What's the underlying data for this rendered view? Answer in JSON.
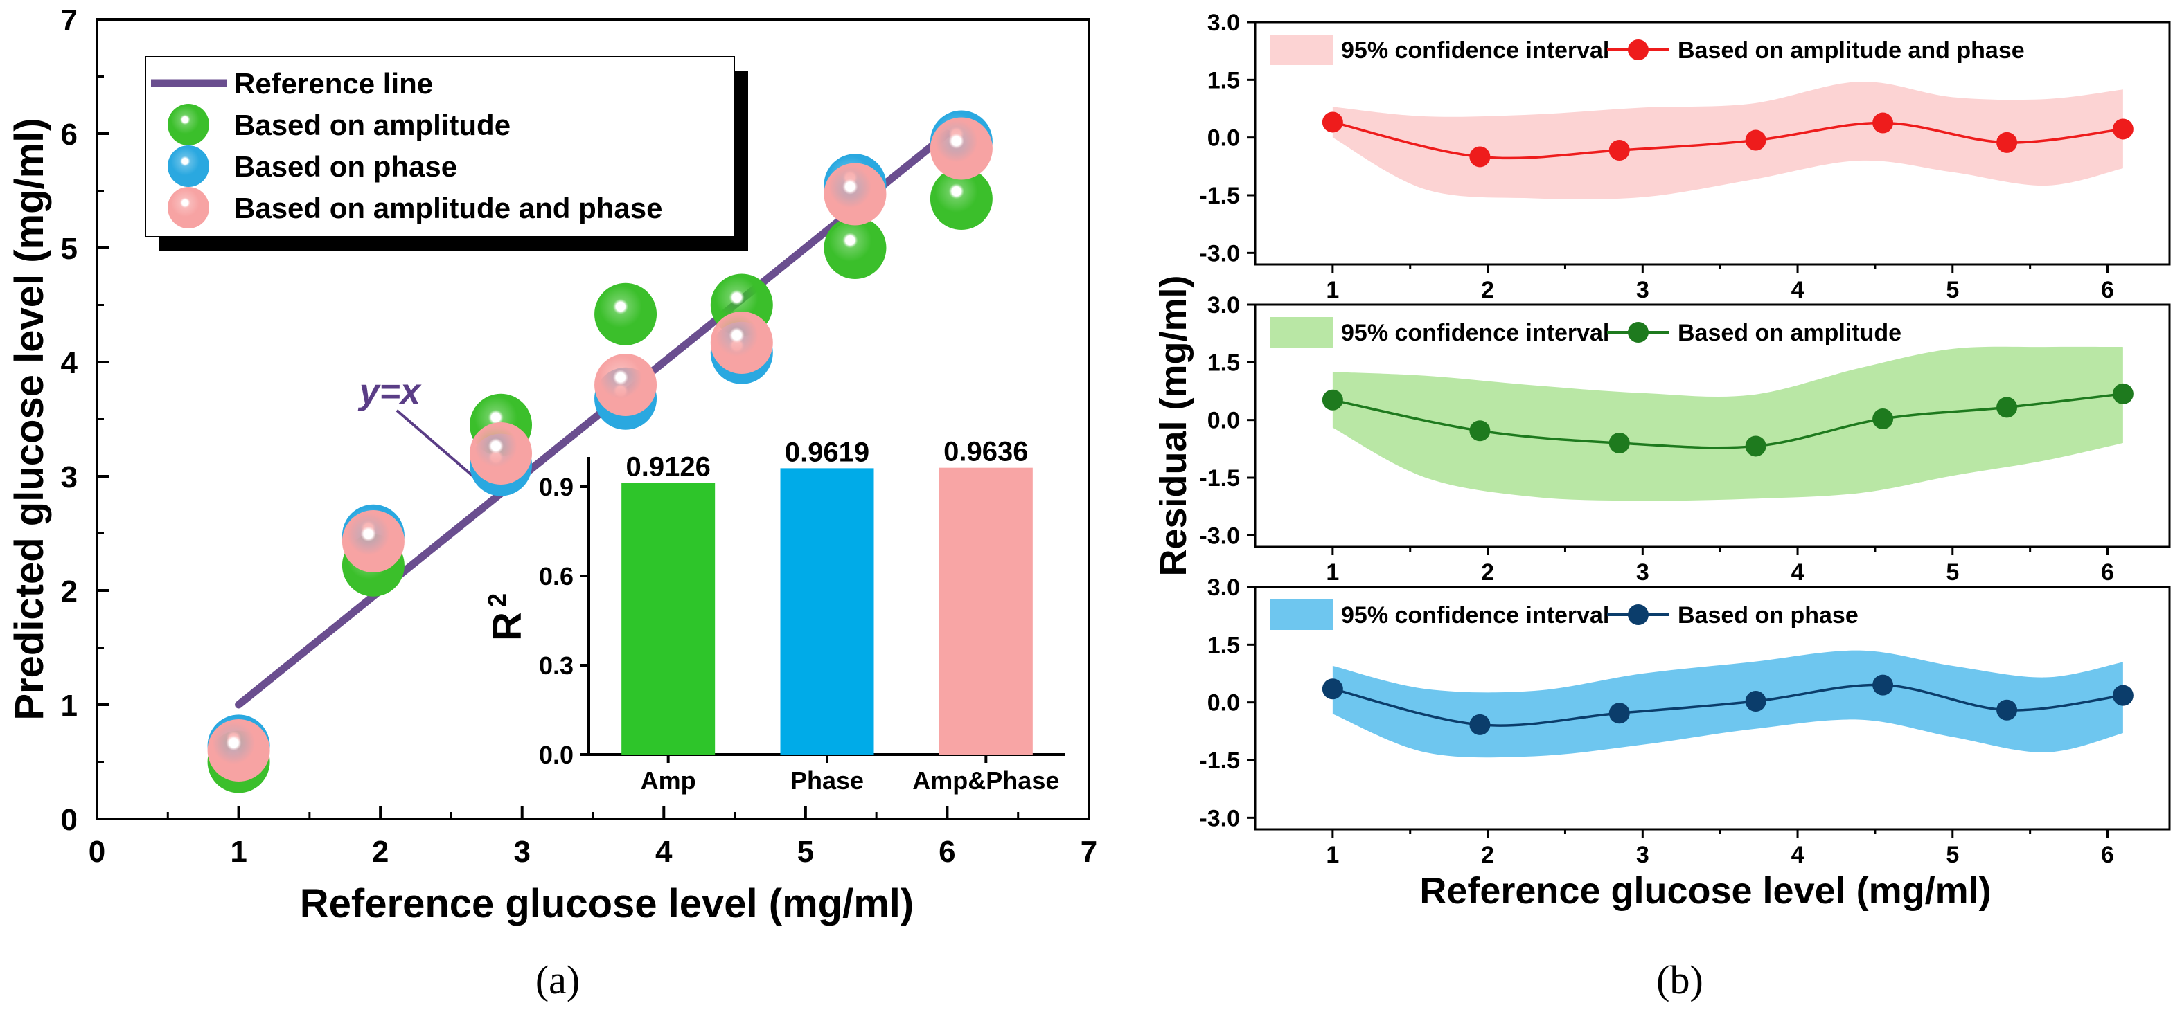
{
  "chart_data": [
    {
      "id": "a",
      "panel_label": "(a)",
      "type": "scatter",
      "xlabel": "Reference glucose level (mg/ml)",
      "ylabel": "Predicted glucose level (mg/ml)",
      "xlim": [
        0,
        7
      ],
      "ylim": [
        0,
        7
      ],
      "xticks": [
        "0",
        "1",
        "2",
        "3",
        "4",
        "5",
        "6",
        "7"
      ],
      "yticks": [
        "0",
        "1",
        "2",
        "3",
        "4",
        "5",
        "6",
        "7"
      ],
      "reference_line": {
        "name": "Reference line",
        "x": [
          1,
          6
        ],
        "y": [
          1,
          6
        ],
        "color": "#6a4e8f"
      },
      "annotation": {
        "text": "y=x",
        "points_to": [
          2.8,
          2.85
        ]
      },
      "legend": {
        "position": "top-left",
        "entries": [
          "Reference line",
          "Based on amplitude",
          "Based on phase",
          "Based on amplitude and phase"
        ]
      },
      "series": [
        {
          "name": "Based on amplitude",
          "color": "#3bbf2b",
          "x": [
            1.0,
            1.95,
            2.85,
            3.73,
            4.55,
            5.35,
            6.1
          ],
          "y": [
            0.5,
            2.22,
            3.45,
            4.42,
            4.5,
            5.0,
            5.43
          ]
        },
        {
          "name": "Based on phase",
          "color": "#2aa8e0",
          "x": [
            1.0,
            1.95,
            2.85,
            3.73,
            4.55,
            5.35,
            6.1
          ],
          "y": [
            0.64,
            2.48,
            3.1,
            3.68,
            4.08,
            5.55,
            5.93
          ]
        },
        {
          "name": "Based on amplitude and phase",
          "color": "#f7a3a3",
          "x": [
            1.0,
            1.95,
            2.85,
            3.73,
            4.55,
            5.35,
            6.1
          ],
          "y": [
            0.6,
            2.43,
            3.2,
            3.8,
            4.17,
            5.47,
            5.87
          ]
        }
      ]
    },
    {
      "id": "inset",
      "type": "bar",
      "ylabel": "R",
      "ylabel_sup": "2",
      "ylim": [
        0,
        1.0
      ],
      "yticks": [
        "0.0",
        "0.3",
        "0.6",
        "0.9"
      ],
      "categories": [
        "Amp",
        "Phase",
        "Amp&Phase"
      ],
      "values": [
        0.9126,
        0.9619,
        0.9636
      ],
      "labels": [
        "0.9126",
        "0.9619",
        "0.9636"
      ],
      "colors": [
        "#2ec52a",
        "#00abe8",
        "#f8a5a5"
      ]
    },
    {
      "id": "b",
      "panel_label": "(b)",
      "type": "line",
      "xlabel": "Reference glucose level (mg/ml)",
      "ylabel": "Residual (mg/ml)",
      "xlim": [
        0.5,
        6.4
      ],
      "ylim": [
        -3.3,
        3.0
      ],
      "xticks": [
        "1",
        "2",
        "3",
        "4",
        "5",
        "6"
      ],
      "yticks": [
        "3.0",
        "1.5",
        "0.0",
        "-1.5",
        "-3.0"
      ],
      "panels": [
        {
          "name": "Based on amplitude and phase",
          "band_label": "95% confidence interval",
          "line_color": "#ee1c1c",
          "band_color": "#fcd3d3",
          "x": [
            1.0,
            1.95,
            2.85,
            3.73,
            4.55,
            5.35,
            6.1
          ],
          "y": [
            0.4,
            -0.5,
            -0.33,
            -0.07,
            0.38,
            -0.13,
            0.22
          ],
          "band_x": [
            1.0,
            1.6,
            2.3,
            3.0,
            3.7,
            4.4,
            5.0,
            5.6,
            6.1
          ],
          "band_upper": [
            0.8,
            0.55,
            0.6,
            0.78,
            0.88,
            1.45,
            1.05,
            1.0,
            1.25
          ],
          "band_lower": [
            0.0,
            -1.35,
            -1.58,
            -1.55,
            -1.1,
            -0.6,
            -0.9,
            -1.25,
            -0.8
          ]
        },
        {
          "name": "Based on amplitude",
          "band_label": "95% confidence interval",
          "line_color": "#1e7a1e",
          "band_color": "#b9e7a5",
          "x": [
            1.0,
            1.95,
            2.85,
            3.73,
            4.55,
            5.35,
            6.1
          ],
          "y": [
            0.52,
            -0.28,
            -0.6,
            -0.68,
            0.03,
            0.33,
            0.68
          ],
          "band_x": [
            1.0,
            1.6,
            2.3,
            3.0,
            3.7,
            4.4,
            5.0,
            5.6,
            6.1
          ],
          "band_upper": [
            1.25,
            1.15,
            0.9,
            0.7,
            0.65,
            1.35,
            1.85,
            1.9,
            1.9
          ],
          "band_lower": [
            -0.2,
            -1.5,
            -2.0,
            -2.1,
            -2.05,
            -1.9,
            -1.45,
            -1.05,
            -0.6
          ]
        },
        {
          "name": "Based on phase",
          "band_label": "95% confidence interval",
          "line_color": "#0b3d6b",
          "band_color": "#6ec6ef",
          "x": [
            1.0,
            1.95,
            2.85,
            3.73,
            4.55,
            5.35,
            6.1
          ],
          "y": [
            0.35,
            -0.58,
            -0.28,
            0.03,
            0.45,
            -0.2,
            0.18
          ],
          "band_x": [
            1.0,
            1.6,
            2.3,
            3.0,
            3.7,
            4.4,
            5.0,
            5.6,
            6.1
          ],
          "band_upper": [
            0.95,
            0.35,
            0.3,
            0.75,
            1.05,
            1.35,
            0.95,
            0.65,
            1.05
          ],
          "band_lower": [
            -0.3,
            -1.3,
            -1.4,
            -1.1,
            -0.7,
            -0.45,
            -0.9,
            -1.3,
            -0.8
          ]
        }
      ]
    }
  ]
}
